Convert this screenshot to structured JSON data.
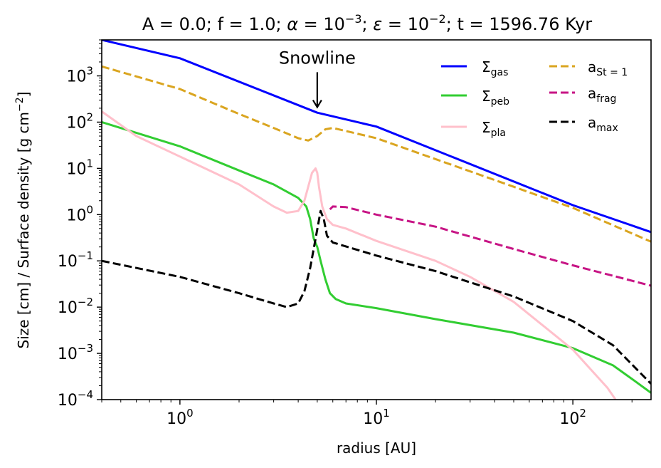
{
  "chart_data": {
    "type": "line",
    "title_parts": [
      "A = 0.0; f = 1.0; ",
      "α",
      " = 10",
      "−3",
      "; ",
      "ε",
      " = 10",
      "−2",
      "; t = 1596.76 Kyr"
    ],
    "xlabel": "radius [AU]",
    "ylabel_parts": [
      "Size [cm] / Surface density [g cm",
      "−2",
      "]"
    ],
    "xscale": "log",
    "yscale": "log",
    "xlim": [
      0.4,
      250
    ],
    "ylim": [
      0.0001,
      6000
    ],
    "x_ticks": [
      {
        "value": 1,
        "base": "10",
        "exp": "0"
      },
      {
        "value": 10,
        "base": "10",
        "exp": "1"
      },
      {
        "value": 100,
        "base": "10",
        "exp": "2"
      }
    ],
    "y_ticks": [
      {
        "value": 0.0001,
        "base": "10",
        "exp": "−4"
      },
      {
        "value": 0.001,
        "base": "10",
        "exp": "−3"
      },
      {
        "value": 0.01,
        "base": "10",
        "exp": "−2"
      },
      {
        "value": 0.1,
        "base": "10",
        "exp": "−1"
      },
      {
        "value": 1,
        "base": "10",
        "exp": "0"
      },
      {
        "value": 10,
        "base": "10",
        "exp": "1"
      },
      {
        "value": 100,
        "base": "10",
        "exp": "2"
      },
      {
        "value": 1000,
        "base": "10",
        "exp": "3"
      }
    ],
    "annotation": {
      "text": "Snowline",
      "x": 5.0,
      "arrow_from_y": 1200,
      "arrow_to_y": 210
    },
    "series": [
      {
        "name": "Σgas",
        "label_main": "Σ",
        "label_sub": "gas",
        "color": "#0000ff",
        "dash": "solid",
        "points": [
          [
            0.4,
            6000
          ],
          [
            1,
            2400
          ],
          [
            5,
            160
          ],
          [
            10,
            80
          ],
          [
            100,
            1.6
          ],
          [
            250,
            0.42
          ]
        ]
      },
      {
        "name": "Σpeb",
        "label_main": "Σ",
        "label_sub": "peb",
        "color": "#32cd32",
        "dash": "solid",
        "points": [
          [
            0.4,
            100
          ],
          [
            1,
            30
          ],
          [
            2,
            9
          ],
          [
            3,
            4.5
          ],
          [
            4,
            2.3
          ],
          [
            4.4,
            1.5
          ],
          [
            4.6,
            0.8
          ],
          [
            4.8,
            0.3
          ],
          [
            5.0,
            0.2
          ],
          [
            5.2,
            0.1
          ],
          [
            5.5,
            0.04
          ],
          [
            5.8,
            0.02
          ],
          [
            6.2,
            0.015
          ],
          [
            7,
            0.012
          ],
          [
            10,
            0.0095
          ],
          [
            20,
            0.0055
          ],
          [
            50,
            0.0028
          ],
          [
            100,
            0.0013
          ],
          [
            160,
            0.00055
          ],
          [
            200,
            0.00028
          ],
          [
            250,
            0.00014
          ]
        ]
      },
      {
        "name": "Σpla",
        "label_main": "Σ",
        "label_sub": "pla",
        "color": "#ffc0cb",
        "dash": "solid",
        "points": [
          [
            0.4,
            170
          ],
          [
            0.6,
            50
          ],
          [
            1,
            18
          ],
          [
            2,
            4.5
          ],
          [
            3,
            1.5
          ],
          [
            3.5,
            1.1
          ],
          [
            4.0,
            1.2
          ],
          [
            4.3,
            2.0
          ],
          [
            4.5,
            4
          ],
          [
            4.7,
            8
          ],
          [
            4.9,
            10
          ],
          [
            5.0,
            8
          ],
          [
            5.1,
            4
          ],
          [
            5.3,
            1.5
          ],
          [
            5.6,
            0.8
          ],
          [
            6,
            0.6
          ],
          [
            7,
            0.5
          ],
          [
            10,
            0.27
          ],
          [
            20,
            0.1
          ],
          [
            30,
            0.045
          ],
          [
            50,
            0.013
          ],
          [
            100,
            0.0012
          ],
          [
            150,
            0.00018
          ],
          [
            165,
            0.0001
          ]
        ]
      },
      {
        "name": "aSt=1",
        "label_main": "a",
        "label_sub": "St = 1",
        "color": "#daa520",
        "dash": "dashed",
        "points": [
          [
            0.4,
            1600
          ],
          [
            1,
            520
          ],
          [
            2,
            150
          ],
          [
            3,
            75
          ],
          [
            4,
            45
          ],
          [
            4.5,
            40
          ],
          [
            5,
            50
          ],
          [
            5.5,
            70
          ],
          [
            6,
            75
          ],
          [
            10,
            45
          ],
          [
            50,
            4
          ],
          [
            100,
            1.4
          ],
          [
            250,
            0.26
          ]
        ]
      },
      {
        "name": "afrag",
        "label_main": "a",
        "label_sub": "frag",
        "color": "#c71585",
        "dash": "dashed",
        "points": [
          [
            5.8,
            1.3
          ],
          [
            6,
            1.5
          ],
          [
            7,
            1.45
          ],
          [
            10,
            1.0
          ],
          [
            20,
            0.55
          ],
          [
            50,
            0.18
          ],
          [
            100,
            0.08
          ],
          [
            250,
            0.029
          ]
        ]
      },
      {
        "name": "amax",
        "label_main": "a",
        "label_sub": "max",
        "color": "#000000",
        "dash": "dashed",
        "points": [
          [
            0.4,
            0.1
          ],
          [
            1,
            0.045
          ],
          [
            2,
            0.02
          ],
          [
            3,
            0.012
          ],
          [
            3.5,
            0.01
          ],
          [
            4.0,
            0.012
          ],
          [
            4.3,
            0.022
          ],
          [
            4.6,
            0.07
          ],
          [
            4.9,
            0.3
          ],
          [
            5.2,
            1.2
          ],
          [
            5.4,
            0.8
          ],
          [
            5.6,
            0.35
          ],
          [
            6,
            0.25
          ],
          [
            10,
            0.13
          ],
          [
            20,
            0.06
          ],
          [
            50,
            0.017
          ],
          [
            100,
            0.005
          ],
          [
            160,
            0.0015
          ],
          [
            250,
            0.00022
          ]
        ]
      }
    ]
  }
}
